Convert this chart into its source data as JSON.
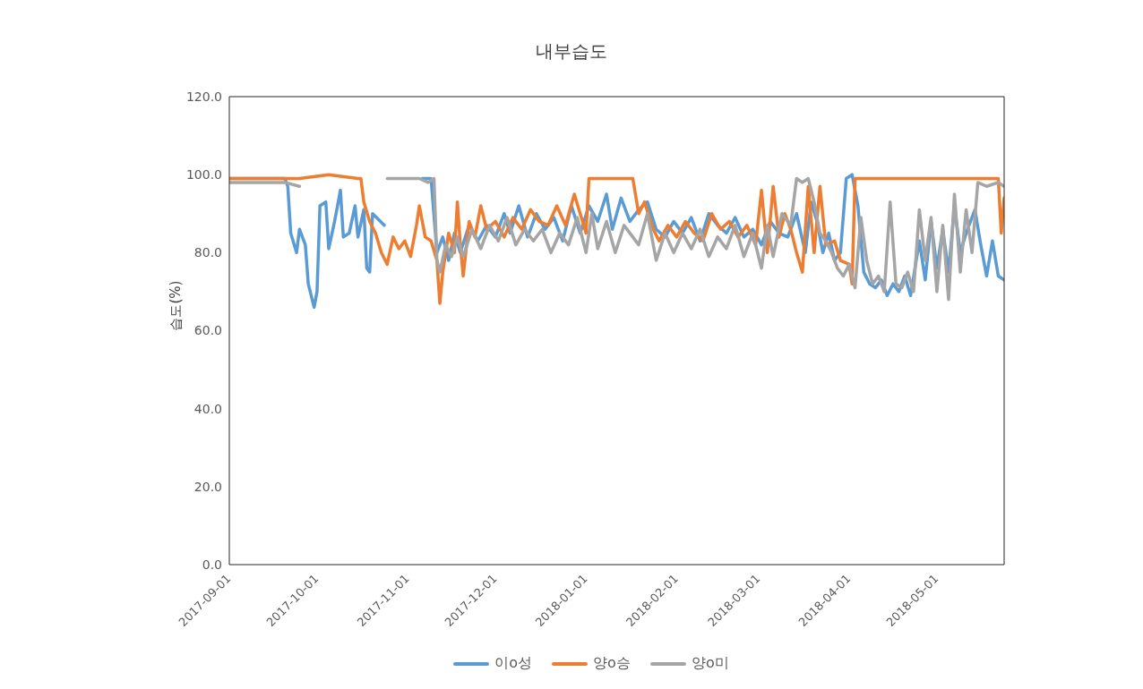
{
  "chart_data": {
    "type": "line",
    "title": "내부습도",
    "ylabel": "습도(%)",
    "xlim": [
      "2017-09-01",
      "2018-05-24"
    ],
    "xticks": [
      "2017-09-01",
      "2017-10-01",
      "2017-11-01",
      "2017-12-01",
      "2018-01-01",
      "2018-02-01",
      "2018-03-01",
      "2018-04-01",
      "2018-05-01"
    ],
    "ylim": [
      0,
      120
    ],
    "yticks": [
      {
        "value": 0,
        "label": "0.0"
      },
      {
        "value": 20,
        "label": "20.0"
      },
      {
        "value": 40,
        "label": "40.0"
      },
      {
        "value": 60,
        "label": "60.0"
      },
      {
        "value": 80,
        "label": "80.0"
      },
      {
        "value": 100,
        "label": "100.0"
      },
      {
        "value": 120,
        "label": "120.0"
      }
    ],
    "legend": "bottom",
    "marker": "none",
    "line_style": "solid",
    "series": [
      {
        "name": "이o성",
        "color": "#5b9bd5",
        "x": [
          "2017-09-01",
          "2017-09-10",
          "2017-09-20",
          "2017-09-21",
          "2017-09-22",
          "2017-09-24",
          "2017-09-25",
          "2017-09-27",
          "2017-09-28",
          "2017-09-30",
          "2017-10-01",
          "2017-10-02",
          "2017-10-04",
          "2017-10-05",
          "2017-10-07",
          "2017-10-09",
          "2017-10-10",
          "2017-10-12",
          "2017-10-14",
          "2017-10-15",
          "2017-10-17",
          "2017-10-18",
          "2017-10-19",
          "2017-10-20",
          "2017-10-24",
          "2017-10-25",
          "2017-11-06",
          "2017-11-09",
          "2017-11-11",
          "2017-11-13",
          "2017-11-15",
          "2017-11-17",
          "2017-11-19",
          "2017-11-22",
          "2017-11-25",
          "2017-11-28",
          "2017-12-01",
          "2017-12-04",
          "2017-12-06",
          "2017-12-09",
          "2017-12-12",
          "2017-12-15",
          "2017-12-18",
          "2017-12-21",
          "2017-12-24",
          "2017-12-27",
          "2017-12-30",
          "2018-01-02",
          "2018-01-05",
          "2018-01-08",
          "2018-01-10",
          "2018-01-13",
          "2018-01-16",
          "2018-01-19",
          "2018-01-22",
          "2018-01-25",
          "2018-01-28",
          "2018-01-31",
          "2018-02-03",
          "2018-02-06",
          "2018-02-09",
          "2018-02-12",
          "2018-02-15",
          "2018-02-18",
          "2018-02-21",
          "2018-02-24",
          "2018-02-27",
          "2018-03-02",
          "2018-03-05",
          "2018-03-08",
          "2018-03-11",
          "2018-03-14",
          "2018-03-17",
          "2018-03-19",
          "2018-03-21",
          "2018-03-23",
          "2018-03-25",
          "2018-03-27",
          "2018-03-29",
          "2018-03-31",
          "2018-04-02",
          "2018-04-04",
          "2018-04-06",
          "2018-04-08",
          "2018-04-10",
          "2018-04-12",
          "2018-04-14",
          "2018-04-16",
          "2018-04-18",
          "2018-04-20",
          "2018-04-22",
          "2018-04-25",
          "2018-04-27",
          "2018-04-29",
          "2018-05-01",
          "2018-05-03",
          "2018-05-05",
          "2018-05-07",
          "2018-05-09",
          "2018-05-11",
          "2018-05-14",
          "2018-05-16",
          "2018-05-18",
          "2018-05-20",
          "2018-05-22",
          "2018-05-24"
        ],
        "values": [
          99,
          99,
          99,
          97,
          85,
          80,
          86,
          82,
          72,
          66,
          70,
          92,
          93,
          81,
          88,
          96,
          84,
          85,
          92,
          84,
          91,
          76,
          75,
          90,
          87,
          null,
          99,
          99,
          80,
          84,
          78,
          85,
          80,
          87,
          83,
          87,
          84,
          90,
          85,
          92,
          84,
          90,
          86,
          89,
          83,
          92,
          85,
          92,
          88,
          95,
          86,
          94,
          88,
          91,
          93,
          86,
          84,
          88,
          85,
          89,
          83,
          90,
          87,
          85,
          89,
          84,
          86,
          82,
          88,
          85,
          84,
          90,
          80,
          93,
          88,
          80,
          85,
          78,
          80,
          99,
          100,
          92,
          75,
          72,
          71,
          73,
          69,
          72,
          70,
          74,
          69,
          83,
          73,
          88,
          76,
          86,
          75,
          92,
          80,
          85,
          91,
          82,
          74,
          83,
          74,
          73
        ]
      },
      {
        "name": "양o승",
        "color": "#ed7d31",
        "x": [
          "2017-09-01",
          "2017-09-20",
          "2017-09-25",
          "2017-10-05",
          "2017-10-15",
          "2017-10-16",
          "2017-10-17",
          "2017-10-19",
          "2017-10-21",
          "2017-10-23",
          "2017-10-25",
          "2017-10-27",
          "2017-10-29",
          "2017-10-31",
          "2017-11-02",
          "2017-11-04",
          "2017-11-05",
          "2017-11-07",
          "2017-11-09",
          "2017-11-11",
          "2017-11-12",
          "2017-11-13",
          "2017-11-15",
          "2017-11-17",
          "2017-11-18",
          "2017-11-19",
          "2017-11-20",
          "2017-11-22",
          "2017-11-24",
          "2017-11-26",
          "2017-11-28",
          "2017-12-01",
          "2017-12-04",
          "2017-12-07",
          "2017-12-10",
          "2017-12-13",
          "2017-12-16",
          "2017-12-19",
          "2017-12-22",
          "2017-12-25",
          "2017-12-28",
          "2017-12-30",
          "2018-01-01",
          "2018-01-02",
          "2018-01-10",
          "2018-01-17",
          "2018-01-19",
          "2018-01-21",
          "2018-01-24",
          "2018-01-26",
          "2018-01-29",
          "2018-02-01",
          "2018-02-04",
          "2018-02-07",
          "2018-02-10",
          "2018-02-13",
          "2018-02-16",
          "2018-02-19",
          "2018-02-22",
          "2018-02-25",
          "2018-02-28",
          "2018-03-02",
          "2018-03-04",
          "2018-03-06",
          "2018-03-08",
          "2018-03-10",
          "2018-03-12",
          "2018-03-14",
          "2018-03-16",
          "2018-03-18",
          "2018-03-20",
          "2018-03-22",
          "2018-03-24",
          "2018-03-27",
          "2018-03-29",
          "2018-04-01",
          "2018-04-02",
          "2018-04-03",
          "2018-04-05",
          "2018-04-15",
          "2018-04-25",
          "2018-05-05",
          "2018-05-15",
          "2018-05-22",
          "2018-05-23",
          "2018-05-24"
        ],
        "values": [
          99,
          99,
          99,
          100,
          99,
          99,
          93,
          88,
          85,
          80,
          77,
          84,
          81,
          83,
          79,
          87,
          92,
          84,
          83,
          78,
          67,
          75,
          85,
          80,
          93,
          82,
          74,
          88,
          84,
          92,
          86,
          88,
          84,
          89,
          86,
          91,
          88,
          87,
          92,
          87,
          95,
          90,
          85,
          99,
          99,
          99,
          90,
          93,
          86,
          83,
          87,
          84,
          88,
          85,
          83,
          90,
          86,
          88,
          84,
          87,
          82,
          96,
          80,
          97,
          84,
          90,
          86,
          80,
          75,
          97,
          80,
          97,
          82,
          83,
          78,
          77,
          72,
          99,
          99,
          99,
          99,
          99,
          99,
          99,
          85,
          94
        ]
      },
      {
        "name": "양o미",
        "color": "#a5a5a5",
        "x": [
          "2017-09-01",
          "2017-09-10",
          "2017-09-20",
          "2017-09-25",
          "2017-09-27",
          "2017-10-25",
          "2017-10-30",
          "2017-11-05",
          "2017-11-08",
          "2017-11-10",
          "2017-11-11",
          "2017-11-12",
          "2017-11-14",
          "2017-11-16",
          "2017-11-18",
          "2017-11-20",
          "2017-11-23",
          "2017-11-26",
          "2017-11-29",
          "2017-12-02",
          "2017-12-05",
          "2017-12-08",
          "2017-12-11",
          "2017-12-14",
          "2017-12-17",
          "2017-12-20",
          "2017-12-23",
          "2017-12-26",
          "2017-12-29",
          "2018-01-01",
          "2018-01-03",
          "2018-01-05",
          "2018-01-08",
          "2018-01-11",
          "2018-01-14",
          "2018-01-17",
          "2018-01-19",
          "2018-01-22",
          "2018-01-25",
          "2018-01-28",
          "2018-01-31",
          "2018-02-03",
          "2018-02-06",
          "2018-02-09",
          "2018-02-12",
          "2018-02-15",
          "2018-02-18",
          "2018-02-21",
          "2018-02-24",
          "2018-02-27",
          "2018-03-02",
          "2018-03-04",
          "2018-03-06",
          "2018-03-09",
          "2018-03-12",
          "2018-03-14",
          "2018-03-16",
          "2018-03-18",
          "2018-03-20",
          "2018-03-22",
          "2018-03-24",
          "2018-03-26",
          "2018-03-28",
          "2018-03-30",
          "2018-04-01",
          "2018-04-03",
          "2018-04-05",
          "2018-04-07",
          "2018-04-09",
          "2018-04-11",
          "2018-04-13",
          "2018-04-15",
          "2018-04-17",
          "2018-04-19",
          "2018-04-21",
          "2018-04-23",
          "2018-04-25",
          "2018-04-27",
          "2018-04-29",
          "2018-05-01",
          "2018-05-03",
          "2018-05-05",
          "2018-05-07",
          "2018-05-09",
          "2018-05-11",
          "2018-05-13",
          "2018-05-15",
          "2018-05-18",
          "2018-05-22",
          "2018-05-24"
        ],
        "values": [
          98,
          98,
          98,
          97,
          null,
          99,
          99,
          99,
          98,
          99,
          78,
          75,
          82,
          79,
          84,
          79,
          86,
          81,
          87,
          83,
          89,
          82,
          86,
          83,
          86,
          80,
          85,
          82,
          89,
          80,
          90,
          81,
          88,
          80,
          87,
          84,
          82,
          90,
          78,
          85,
          80,
          85,
          81,
          86,
          79,
          84,
          81,
          87,
          79,
          85,
          76,
          87,
          79,
          90,
          87,
          99,
          98,
          99,
          93,
          85,
          83,
          80,
          76,
          74,
          77,
          71,
          89,
          78,
          72,
          74,
          70,
          93,
          72,
          71,
          75,
          70,
          91,
          78,
          89,
          70,
          87,
          68,
          95,
          75,
          91,
          80,
          98,
          97,
          98,
          97
        ]
      }
    ]
  }
}
